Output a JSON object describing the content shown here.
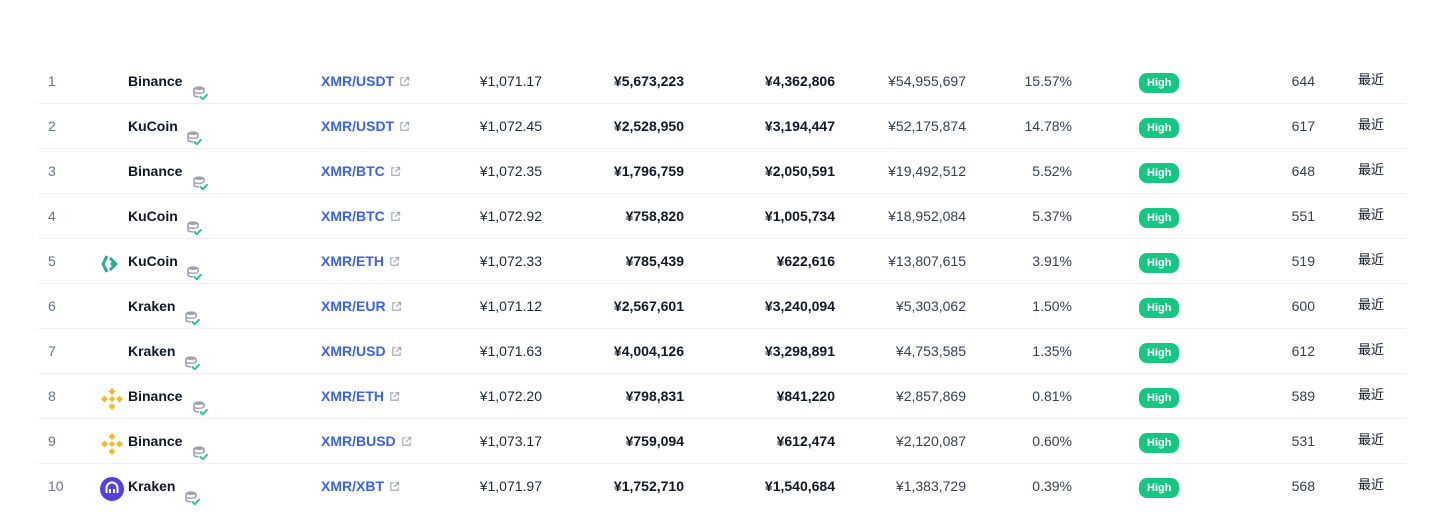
{
  "rows": [
    {
      "rank": "1",
      "exchange": "Binance",
      "logo": "none",
      "pair": "XMR/USDT",
      "price": "¥1,071.17",
      "depth_plus": "¥5,673,223",
      "depth_minus": "¥4,362,806",
      "volume": "¥54,955,697",
      "share": "15.57%",
      "confidence": "High",
      "score": "644",
      "updated": "最近"
    },
    {
      "rank": "2",
      "exchange": "KuCoin",
      "logo": "none",
      "pair": "XMR/USDT",
      "price": "¥1,072.45",
      "depth_plus": "¥2,528,950",
      "depth_minus": "¥3,194,447",
      "volume": "¥52,175,874",
      "share": "14.78%",
      "confidence": "High",
      "score": "617",
      "updated": "最近"
    },
    {
      "rank": "3",
      "exchange": "Binance",
      "logo": "none",
      "pair": "XMR/BTC",
      "price": "¥1,072.35",
      "depth_plus": "¥1,796,759",
      "depth_minus": "¥2,050,591",
      "volume": "¥19,492,512",
      "share": "5.52%",
      "confidence": "High",
      "score": "648",
      "updated": "最近"
    },
    {
      "rank": "4",
      "exchange": "KuCoin",
      "logo": "none",
      "pair": "XMR/BTC",
      "price": "¥1,072.92",
      "depth_plus": "¥758,820",
      "depth_minus": "¥1,005,734",
      "volume": "¥18,952,084",
      "share": "5.37%",
      "confidence": "High",
      "score": "551",
      "updated": "最近"
    },
    {
      "rank": "5",
      "exchange": "KuCoin",
      "logo": "kucoin-logo",
      "pair": "XMR/ETH",
      "price": "¥1,072.33",
      "depth_plus": "¥785,439",
      "depth_minus": "¥622,616",
      "volume": "¥13,807,615",
      "share": "3.91%",
      "confidence": "High",
      "score": "519",
      "updated": "最近"
    },
    {
      "rank": "6",
      "exchange": "Kraken",
      "logo": "none",
      "pair": "XMR/EUR",
      "price": "¥1,071.12",
      "depth_plus": "¥2,567,601",
      "depth_minus": "¥3,240,094",
      "volume": "¥5,303,062",
      "share": "1.50%",
      "confidence": "High",
      "score": "600",
      "updated": "最近"
    },
    {
      "rank": "7",
      "exchange": "Kraken",
      "logo": "none",
      "pair": "XMR/USD",
      "price": "¥1,071.63",
      "depth_plus": "¥4,004,126",
      "depth_minus": "¥3,298,891",
      "volume": "¥4,753,585",
      "share": "1.35%",
      "confidence": "High",
      "score": "612",
      "updated": "最近"
    },
    {
      "rank": "8",
      "exchange": "Binance",
      "logo": "binance-logo",
      "pair": "XMR/ETH",
      "price": "¥1,072.20",
      "depth_plus": "¥798,831",
      "depth_minus": "¥841,220",
      "volume": "¥2,857,869",
      "share": "0.81%",
      "confidence": "High",
      "score": "589",
      "updated": "最近"
    },
    {
      "rank": "9",
      "exchange": "Binance",
      "logo": "binance-logo",
      "pair": "XMR/BUSD",
      "price": "¥1,073.17",
      "depth_plus": "¥759,094",
      "depth_minus": "¥612,474",
      "volume": "¥2,120,087",
      "share": "0.60%",
      "confidence": "High",
      "score": "531",
      "updated": "最近"
    },
    {
      "rank": "10",
      "exchange": "Kraken",
      "logo": "kraken-logo",
      "pair": "XMR/XBT",
      "price": "¥1,071.97",
      "depth_plus": "¥1,752,710",
      "depth_minus": "¥1,540,684",
      "volume": "¥1,383,729",
      "share": "0.39%",
      "confidence": "High",
      "score": "568",
      "updated": "最近"
    }
  ],
  "colors": {
    "link": "#3861fb",
    "badge": "#16c784",
    "kucoin": "#23af91",
    "binance": "#f3ba2f",
    "kraken": "#5741d9"
  }
}
